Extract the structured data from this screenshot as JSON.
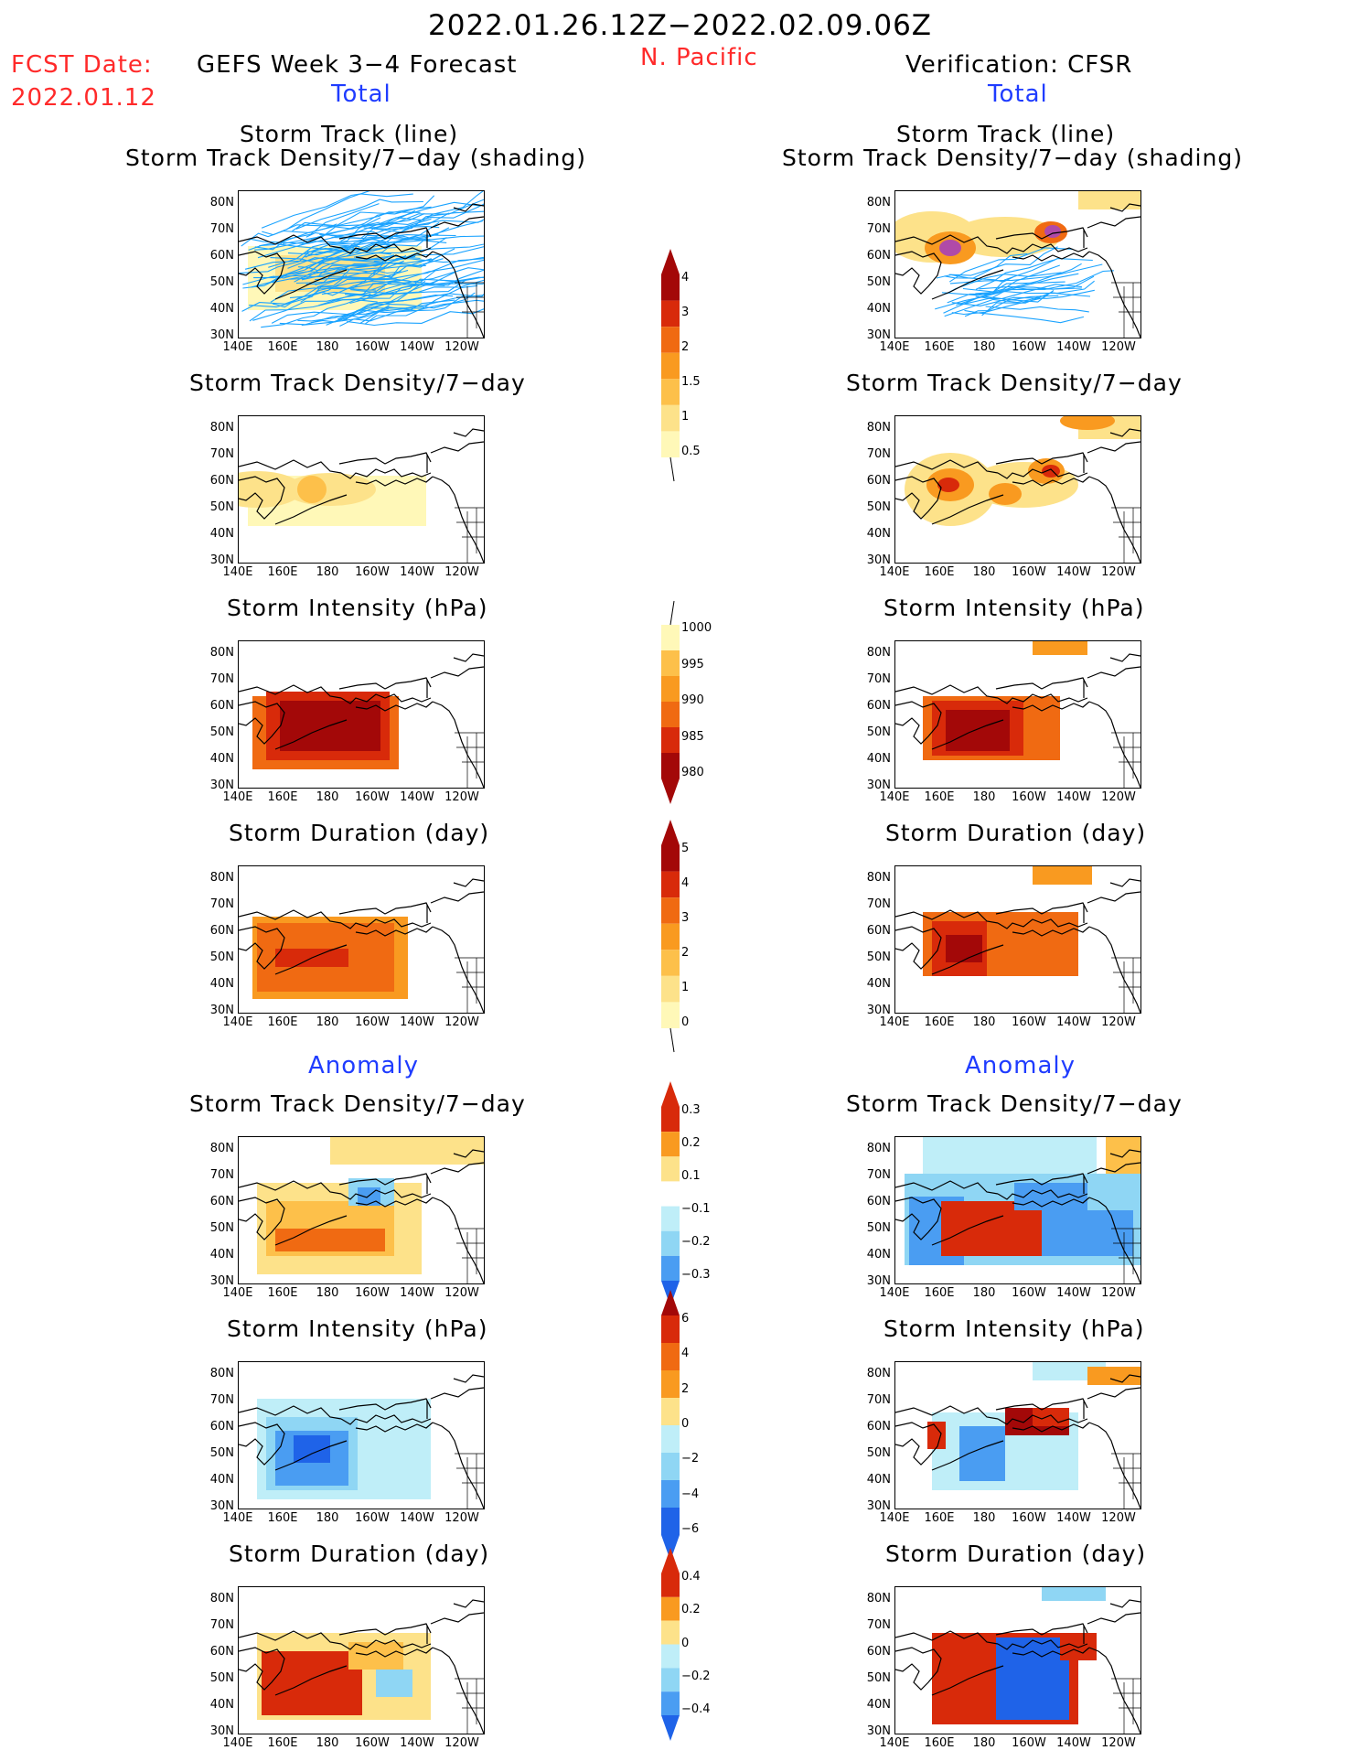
{
  "header": {
    "date_range": "2022.01.26.12Z−2022.02.09.06Z",
    "region": "N. Pacific",
    "fcst_label": "FCST Date:",
    "fcst_date": "2022.01.12",
    "left_title": "GEFS Week 3−4 Forecast",
    "right_title": "Verification: CFSR",
    "total_label": "Total",
    "anomaly_label": "Anomaly"
  },
  "panel_titles": {
    "track_line": "Storm Track (line)",
    "track_shading": "Storm Track Density/7−day (shading)",
    "density": "Storm Track Density/7−day",
    "intensity": "Storm Intensity (hPa)",
    "duration": "Storm Duration (day)"
  },
  "axes": {
    "lat_ticks": [
      "80N",
      "70N",
      "60N",
      "50N",
      "40N",
      "30N"
    ],
    "lon_ticks": [
      "140E",
      "160E",
      "180",
      "160W",
      "140W",
      "120W"
    ]
  },
  "colorbars": {
    "density_total": [
      "0.5",
      "1",
      "1.5",
      "2",
      "3",
      "4"
    ],
    "intensity_total": [
      "1000",
      "995",
      "990",
      "985",
      "980"
    ],
    "duration_total": [
      "0",
      "1",
      "2",
      "3",
      "4",
      "5"
    ],
    "density_anom": [
      "0.3",
      "0.2",
      "0.1",
      "−0.1",
      "−0.2",
      "−0.3"
    ],
    "intensity_anom": [
      "6",
      "4",
      "2",
      "0",
      "−2",
      "−4",
      "−6"
    ],
    "duration_anom": [
      "0.4",
      "0.2",
      "0",
      "−0.2",
      "−0.4"
    ]
  },
  "colors": {
    "title_red": "#ff2a2a",
    "label_blue": "#1f3cff",
    "track_line": "#1aa3ff",
    "warm": [
      "#fff8b8",
      "#fde28a",
      "#fdc04a",
      "#f99a20",
      "#f06a12",
      "#d82a0a",
      "#a30808"
    ],
    "cool": [
      "#bfeef8",
      "#8fd6f4",
      "#4a9df2",
      "#1f63e8"
    ]
  }
}
